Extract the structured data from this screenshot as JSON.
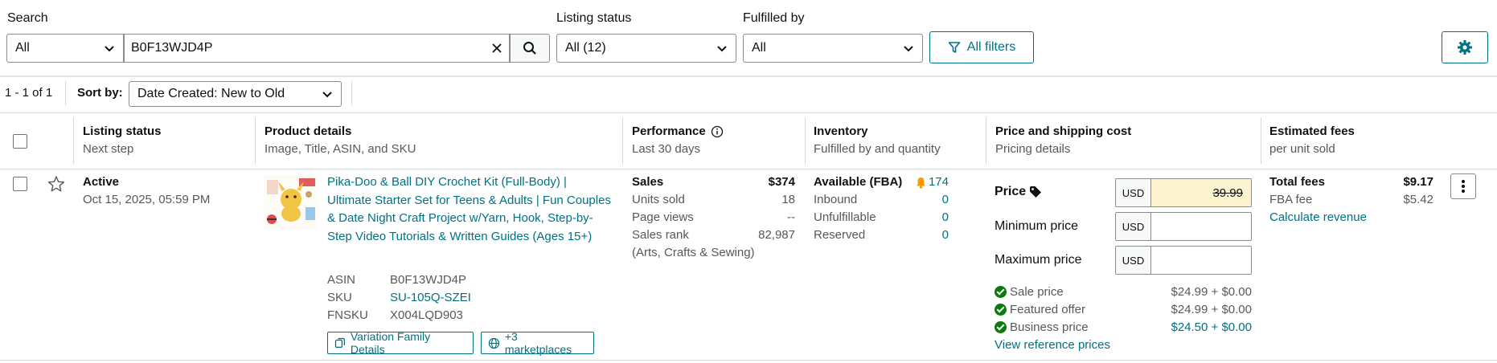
{
  "filters": {
    "search_label": "Search",
    "search_scope": "All",
    "search_value": "B0F13WJD4P",
    "listing_status_label": "Listing status",
    "listing_status_value": "All (12)",
    "fulfilled_by_label": "Fulfilled by",
    "fulfilled_by_value": "All",
    "all_filters": "All filters"
  },
  "results": {
    "count": "1 - 1 of 1",
    "sort_label": "Sort by:",
    "sort_value": "Date Created: New to Old"
  },
  "columns": [
    {
      "title": "Listing status",
      "sub": "Next step"
    },
    {
      "title": "Product details",
      "sub": "Image, Title, ASIN, and SKU"
    },
    {
      "title": "Performance",
      "sub": "Last 30 days"
    },
    {
      "title": "Inventory",
      "sub": "Fulfilled by and quantity"
    },
    {
      "title": "Price and shipping cost",
      "sub": "Pricing details"
    },
    {
      "title": "Estimated fees",
      "sub": "per unit sold"
    }
  ],
  "row": {
    "status": "Active",
    "created": "Oct 15, 2025, 05:59 PM",
    "title": "Pika-Doo & Ball DIY Crochet Kit (Full-Body) | Ultimate Starter Set for Teens & Adults | Fun Couples & Date Night Craft Project w/Yarn, Hook, Step-by-Step Video Tutorials & Written Guides (Ages 15+)",
    "asin_label": "ASIN",
    "asin": "B0F13WJD4P",
    "sku_label": "SKU",
    "sku": "SU-105Q-SZEI",
    "fnsku_label": "FNSKU",
    "fnsku": "X004LQD903",
    "variation_btn": "Variation Family Details",
    "marketplaces_btn": "+3 marketplaces",
    "performance": {
      "sales_label": "Sales",
      "sales": "$374",
      "units_label": "Units sold",
      "units": "18",
      "views_label": "Page views",
      "views": "--",
      "rank_label": "Sales rank",
      "rank": "82,987",
      "rank_category": "(Arts, Crafts & Sewing)"
    },
    "inventory": {
      "available_label": "Available (FBA)",
      "available": "174",
      "inbound_label": "Inbound",
      "inbound": "0",
      "unfulfillable_label": "Unfulfillable",
      "unfulfillable": "0",
      "reserved_label": "Reserved",
      "reserved": "0"
    },
    "pricing": {
      "price_label": "Price",
      "currency": "USD",
      "price_value": "39.99",
      "min_label": "Minimum price",
      "max_label": "Maximum price",
      "sale_label": "Sale price",
      "sale_value": "$24.99 + $0.00",
      "featured_label": "Featured offer",
      "featured_value": "$24.99 + $0.00",
      "business_label": "Business price",
      "business_value": "$24.50 + $0.00",
      "reference_link": "View reference prices"
    },
    "fees": {
      "total_label": "Total fees",
      "total": "$9.17",
      "fba_label": "FBA fee",
      "fba": "$5.42",
      "calc_link": "Calculate revenue"
    }
  },
  "colors": {
    "accent": "#007185",
    "price_highlight": "#fcf4cf",
    "ok": "#0b7b0b",
    "bell": "#ff9900"
  }
}
